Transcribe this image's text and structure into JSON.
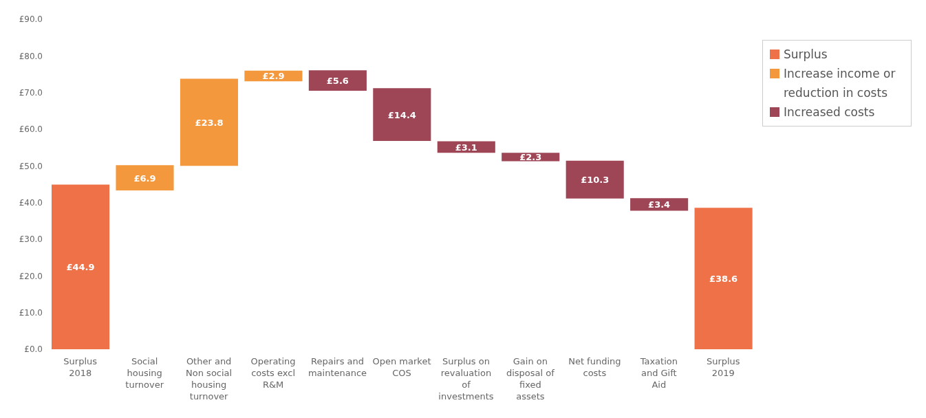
{
  "chart_data": {
    "type": "bar",
    "categories": [
      "Surplus 2018",
      "Social housing turnover",
      "Other and Non social housing turnover",
      "Operating costs excl R&M",
      "Repairs and maintenance",
      "Open market COS",
      "Surplus on revaluation of investments",
      "Gain on disposal of fixed assets",
      "Net funding costs",
      "Taxation and Gift Aid",
      "Surplus 2019"
    ],
    "series": [
      {
        "name": "Surplus",
        "color": "#ee7148",
        "values": [
          44.9,
          null,
          null,
          null,
          null,
          null,
          null,
          null,
          null,
          null,
          38.6
        ],
        "base": [
          0,
          null,
          null,
          null,
          null,
          null,
          null,
          null,
          null,
          null,
          0
        ],
        "value_labels": [
          "£44.9",
          null,
          null,
          null,
          null,
          null,
          null,
          null,
          null,
          null,
          "£38.6"
        ]
      },
      {
        "name": "Increase income or reduction in costs",
        "color": "#f4983e",
        "values": [
          null,
          6.9,
          23.8,
          2.9,
          null,
          null,
          null,
          null,
          null,
          null,
          null
        ],
        "base": [
          null,
          43.3,
          50.0,
          73.1,
          null,
          null,
          null,
          null,
          null,
          null,
          null
        ],
        "value_labels": [
          null,
          "£6.9",
          "£23.8",
          "£2.9",
          null,
          null,
          null,
          null,
          null,
          null,
          null
        ]
      },
      {
        "name": "Increased costs",
        "color": "#9e4556",
        "values": [
          null,
          null,
          null,
          null,
          5.6,
          14.4,
          3.1,
          2.3,
          10.3,
          3.4,
          null
        ],
        "base": [
          null,
          null,
          null,
          null,
          70.5,
          56.8,
          53.6,
          51.3,
          41.1,
          37.8,
          null
        ],
        "value_labels": [
          null,
          null,
          null,
          null,
          "£5.6",
          "£14.4",
          "£3.1",
          "£2.3",
          "£10.3",
          "£3.4",
          null
        ]
      }
    ],
    "ylim": [
      0,
      90
    ],
    "yticks": [
      {
        "value": 0,
        "label": "£0.0"
      },
      {
        "value": 10,
        "label": "£10.0"
      },
      {
        "value": 20,
        "label": "£20.0"
      },
      {
        "value": 30,
        "label": "£30.0"
      },
      {
        "value": 40,
        "label": "£40.0"
      },
      {
        "value": 50,
        "label": "£50.0"
      },
      {
        "value": 60,
        "label": "£60.0"
      },
      {
        "value": 70,
        "label": "£70.0"
      },
      {
        "value": 80,
        "label": "£80.0"
      },
      {
        "value": 90,
        "label": "£90.0"
      }
    ],
    "grid": false,
    "legend": "top right"
  }
}
